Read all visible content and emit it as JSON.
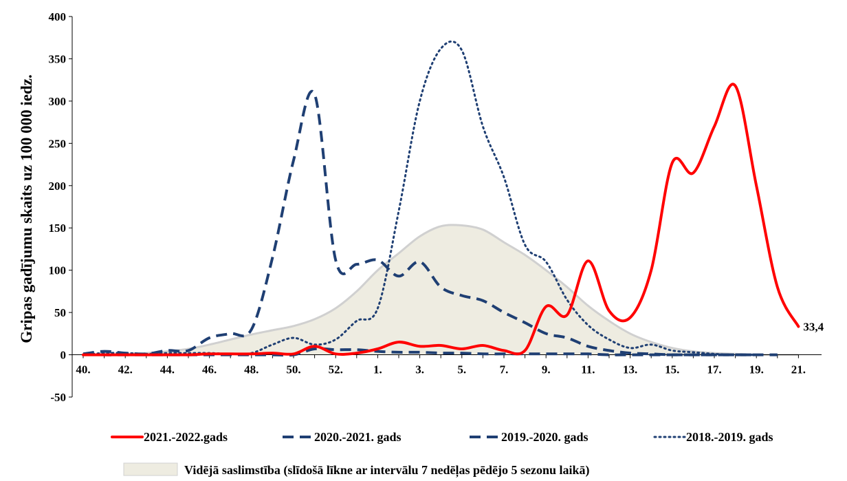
{
  "chart_data": {
    "type": "line",
    "title": "",
    "xlabel": "",
    "ylabel": "Gripas gadījumu skaits uz 100 000 iedz.",
    "ylim": [
      -50,
      400
    ],
    "yticks": [
      -50,
      0,
      50,
      100,
      150,
      200,
      250,
      300,
      350,
      400
    ],
    "grid": false,
    "legend_position": "bottom",
    "weeks": [
      "40",
      "41",
      "42",
      "43",
      "44",
      "45",
      "46",
      "47",
      "48",
      "49",
      "50",
      "51",
      "52",
      "1",
      "2",
      "3",
      "4",
      "5",
      "6",
      "7",
      "8",
      "9",
      "10",
      "11",
      "12",
      "13",
      "14",
      "15",
      "16",
      "17",
      "18",
      "19",
      "20",
      "21",
      "22"
    ],
    "x_tick_labels": [
      "40.",
      "42.",
      "44.",
      "46.",
      "48.",
      "50.",
      "52.",
      "1.",
      "3.",
      "5.",
      "7.",
      "9.",
      "11.",
      "13.",
      "15.",
      "17.",
      "19.",
      "21."
    ],
    "series": [
      {
        "name": "2021.-2022.gads",
        "style": "solid",
        "color": "#ff0000",
        "values": [
          0,
          0,
          0,
          0,
          0,
          0,
          1,
          1,
          1,
          2,
          1,
          10,
          1,
          2,
          7,
          15,
          10,
          11,
          7,
          11,
          5,
          5,
          57,
          47,
          111,
          52,
          44,
          100,
          227,
          215,
          270,
          318,
          200,
          80,
          33.4
        ]
      },
      {
        "name": "2020.-2021. gads",
        "style": "dashed",
        "color": "#1f3f73",
        "values": [
          1,
          0,
          0,
          0,
          0,
          0,
          0,
          0,
          0,
          0,
          0,
          7,
          6,
          6,
          4,
          3,
          3,
          2,
          2,
          1,
          1,
          1,
          1,
          1,
          1,
          0,
          0,
          0,
          0,
          0,
          0,
          0,
          0,
          0,
          null
        ]
      },
      {
        "name": "2019.-2020. gads",
        "style": "dashed",
        "color": "#1f3f73",
        "values": [
          1,
          4,
          2,
          1,
          5,
          5,
          20,
          25,
          30,
          115,
          230,
          308,
          112,
          107,
          112,
          93,
          110,
          80,
          70,
          64,
          50,
          38,
          25,
          20,
          10,
          5,
          2,
          1,
          0,
          0,
          0,
          0,
          0,
          null,
          null
        ]
      },
      {
        "name": "2018.-2019. gads",
        "style": "dotted",
        "color": "#1f3f73",
        "values": [
          0,
          2,
          2,
          1,
          2,
          2,
          2,
          1,
          2,
          12,
          20,
          12,
          18,
          40,
          55,
          170,
          300,
          362,
          360,
          270,
          210,
          130,
          110,
          65,
          35,
          18,
          8,
          12,
          5,
          3,
          1,
          0,
          0,
          null,
          null
        ]
      }
    ],
    "area": {
      "name": "Vidējā saslimstība (slīdošā līkne ar intervālu 7 nedēļas pēdējo 5 sezonu laikā)",
      "color": "#eeece1",
      "edge_color": "#d0d0d0",
      "values": [
        0,
        0,
        1,
        2,
        4,
        7,
        12,
        18,
        24,
        29,
        34,
        42,
        55,
        75,
        100,
        120,
        140,
        152,
        153,
        148,
        133,
        118,
        100,
        80,
        58,
        40,
        25,
        15,
        8,
        4,
        2,
        1,
        0,
        0,
        0
      ]
    },
    "annotations": [
      {
        "text": "33,4",
        "week": "22",
        "value": 33.4
      }
    ]
  }
}
